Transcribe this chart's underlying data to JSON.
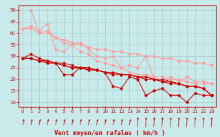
{
  "bg_color": "#c8eaea",
  "grid_color": "#a0cccc",
  "line_color_dark": "#cc0000",
  "line_color_light": "#ff9999",
  "xlabel": "Vent moyen/en rafales ( km/h )",
  "xlabel_color": "#cc0000",
  "ylabel_ticks": [
    10,
    15,
    20,
    25,
    30,
    35,
    40,
    45,
    50
  ],
  "xticks": [
    0,
    1,
    2,
    3,
    4,
    5,
    6,
    7,
    8,
    9,
    10,
    11,
    12,
    13,
    14,
    15,
    16,
    17,
    18,
    19,
    20,
    21,
    22,
    23
  ],
  "ylim": [
    8,
    52
  ],
  "xlim": [
    -0.5,
    23.5
  ],
  "series": [
    {
      "x": [
        0,
        1,
        2,
        3,
        4,
        5,
        6,
        7,
        8,
        9,
        10,
        11,
        12,
        13,
        14,
        15,
        16,
        17,
        18,
        19,
        20,
        21,
        22,
        23
      ],
      "y": [
        42,
        42,
        40,
        41,
        38,
        36,
        35,
        36,
        33,
        30,
        29,
        30,
        25,
        26,
        25,
        30,
        20,
        19,
        21,
        19,
        21,
        19,
        19,
        18
      ],
      "color": "#ff9999",
      "lw": 0.8,
      "marker": "D",
      "ms": 1.8
    },
    {
      "x": [
        0,
        1,
        2,
        3,
        4,
        5,
        6,
        7,
        8,
        9,
        10,
        11,
        12,
        13,
        14,
        15,
        16,
        17,
        18,
        19,
        20,
        21,
        22,
        23
      ],
      "y": [
        29,
        31,
        29,
        28,
        27,
        22,
        22,
        25,
        25,
        24,
        23,
        17,
        16,
        21,
        20,
        13,
        15,
        16,
        13,
        13,
        10,
        14,
        13,
        13
      ],
      "color": "#cc0000",
      "lw": 0.8,
      "marker": "D",
      "ms": 1.8
    },
    {
      "x": [
        0,
        1,
        2,
        3,
        4,
        5,
        6,
        7,
        8,
        9,
        10,
        11,
        12,
        13,
        14,
        15,
        16,
        17,
        18,
        19,
        20,
        21,
        22,
        23
      ],
      "y": [
        29,
        29,
        28,
        27,
        27,
        26,
        25,
        25,
        24,
        24,
        23,
        23,
        22,
        22,
        21,
        21,
        20,
        19,
        19,
        18,
        17,
        17,
        16,
        13
      ],
      "color": "#cc0000",
      "lw": 0.9,
      "marker": "D",
      "ms": 1.8
    },
    {
      "x": [
        0,
        1,
        2,
        3,
        4,
        5,
        6,
        7,
        8,
        9,
        10,
        11,
        12,
        13,
        14,
        15,
        16,
        17,
        18,
        19,
        20,
        21,
        22,
        23
      ],
      "y": [
        29,
        29,
        28,
        28,
        27,
        26,
        25,
        25,
        24,
        24,
        23,
        22,
        22,
        22,
        21,
        20,
        20,
        19,
        18,
        18,
        17,
        17,
        16,
        13
      ],
      "color": "#cc0000",
      "lw": 0.8,
      "marker": "D",
      "ms": 1.8
    },
    {
      "x": [
        0,
        1,
        2,
        3,
        4,
        5,
        6,
        7,
        8,
        9,
        10,
        11,
        12,
        13,
        14,
        15,
        16,
        17,
        18,
        19,
        20,
        21,
        22,
        23
      ],
      "y": [
        29,
        29,
        28,
        28,
        27,
        27,
        26,
        25,
        25,
        24,
        23,
        23,
        22,
        22,
        21,
        21,
        20,
        20,
        19,
        18,
        17,
        17,
        16,
        13
      ],
      "color": "#cc0000",
      "lw": 0.7,
      "marker": "D",
      "ms": 1.6
    },
    {
      "x": [
        0,
        1,
        2,
        3,
        4,
        5,
        6,
        7,
        8,
        9,
        10,
        11,
        12,
        13,
        14,
        15,
        16,
        17,
        18,
        19,
        20,
        21,
        22,
        23
      ],
      "y": [
        42,
        43,
        41,
        44,
        33,
        32,
        35,
        32,
        31,
        28,
        27,
        26,
        25,
        23,
        22,
        22,
        21,
        21,
        20,
        20,
        19,
        18,
        18,
        18
      ],
      "color": "#ff9999",
      "lw": 0.8,
      "marker": "D",
      "ms": 1.8
    },
    {
      "x": [
        1,
        2,
        3,
        4,
        5,
        6,
        7,
        8,
        9,
        10,
        11,
        12,
        13,
        14,
        15,
        16,
        17,
        18,
        19,
        20,
        21,
        22,
        23
      ],
      "y": [
        50,
        40,
        40,
        38,
        37,
        36,
        35,
        34,
        33,
        33,
        32,
        32,
        31,
        31,
        30,
        30,
        29,
        29,
        28,
        28,
        27,
        27,
        26
      ],
      "color": "#ff9999",
      "lw": 0.8,
      "marker": "D",
      "ms": 1.8
    }
  ],
  "tick_fontsize": 5,
  "label_fontsize": 6.5
}
